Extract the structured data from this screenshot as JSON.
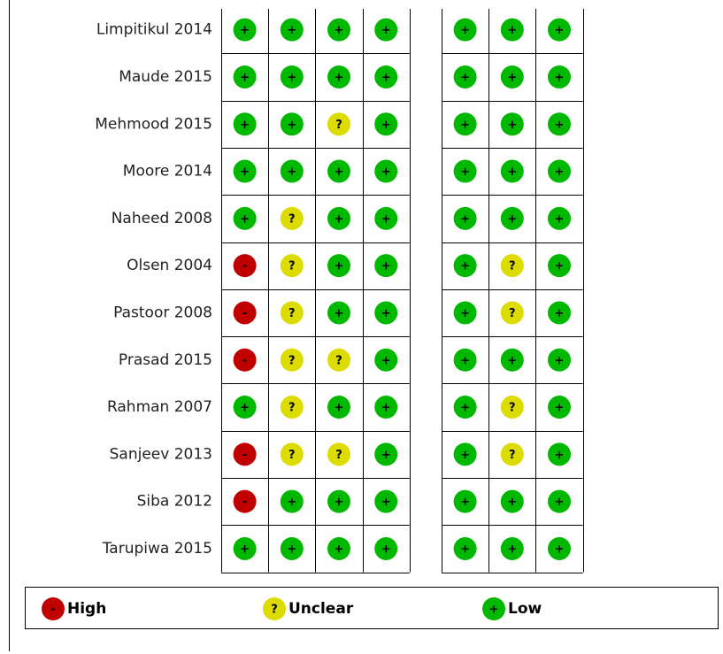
{
  "rows": [
    {
      "name": "Limpitikul 2014",
      "groups": [
        [
          "+",
          "+",
          "+",
          "+"
        ],
        [
          "+",
          "+",
          "+"
        ]
      ]
    },
    {
      "name": "Maude 2015",
      "groups": [
        [
          "+",
          "+",
          "+",
          "+"
        ],
        [
          "+",
          "+",
          "+"
        ]
      ]
    },
    {
      "name": "Mehmood 2015",
      "groups": [
        [
          "+",
          "+",
          "?",
          "+"
        ],
        [
          "+",
          "+",
          "+"
        ]
      ]
    },
    {
      "name": "Moore 2014",
      "groups": [
        [
          "+",
          "+",
          "+",
          "+"
        ],
        [
          "+",
          "+",
          "+"
        ]
      ]
    },
    {
      "name": "Naheed 2008",
      "groups": [
        [
          "+",
          "?",
          "+",
          "+"
        ],
        [
          "+",
          "+",
          "+"
        ]
      ]
    },
    {
      "name": "Olsen 2004",
      "groups": [
        [
          "-",
          "?",
          "+",
          "+"
        ],
        [
          "+",
          "?",
          "+"
        ]
      ]
    },
    {
      "name": "Pastoor 2008",
      "groups": [
        [
          "-",
          "?",
          "+",
          "+"
        ],
        [
          "+",
          "?",
          "+"
        ]
      ]
    },
    {
      "name": "Prasad 2015",
      "groups": [
        [
          "-",
          "?",
          "?",
          "+"
        ],
        [
          "+",
          "+",
          "+"
        ]
      ]
    },
    {
      "name": "Rahman 2007",
      "groups": [
        [
          "+",
          "?",
          "+",
          "+"
        ],
        [
          "+",
          "?",
          "+"
        ]
      ]
    },
    {
      "name": "Sanjeev 2013",
      "groups": [
        [
          "-",
          "?",
          "?",
          "+"
        ],
        [
          "+",
          "?",
          "+"
        ]
      ]
    },
    {
      "name": "Siba 2012",
      "groups": [
        [
          "-",
          "+",
          "+",
          "+"
        ],
        [
          "+",
          "+",
          "+"
        ]
      ]
    },
    {
      "name": "Tarupiwa 2015",
      "groups": [
        [
          "+",
          "+",
          "+",
          "+"
        ],
        [
          "+",
          "+",
          "+"
        ]
      ]
    }
  ],
  "legend": [
    {
      "symbol": "-",
      "label": "High",
      "color": "#c00000"
    },
    {
      "symbol": "?",
      "label": "Unclear",
      "color": "#dcdc00"
    },
    {
      "symbol": "+",
      "label": "Low",
      "color": "#00b800"
    }
  ]
}
